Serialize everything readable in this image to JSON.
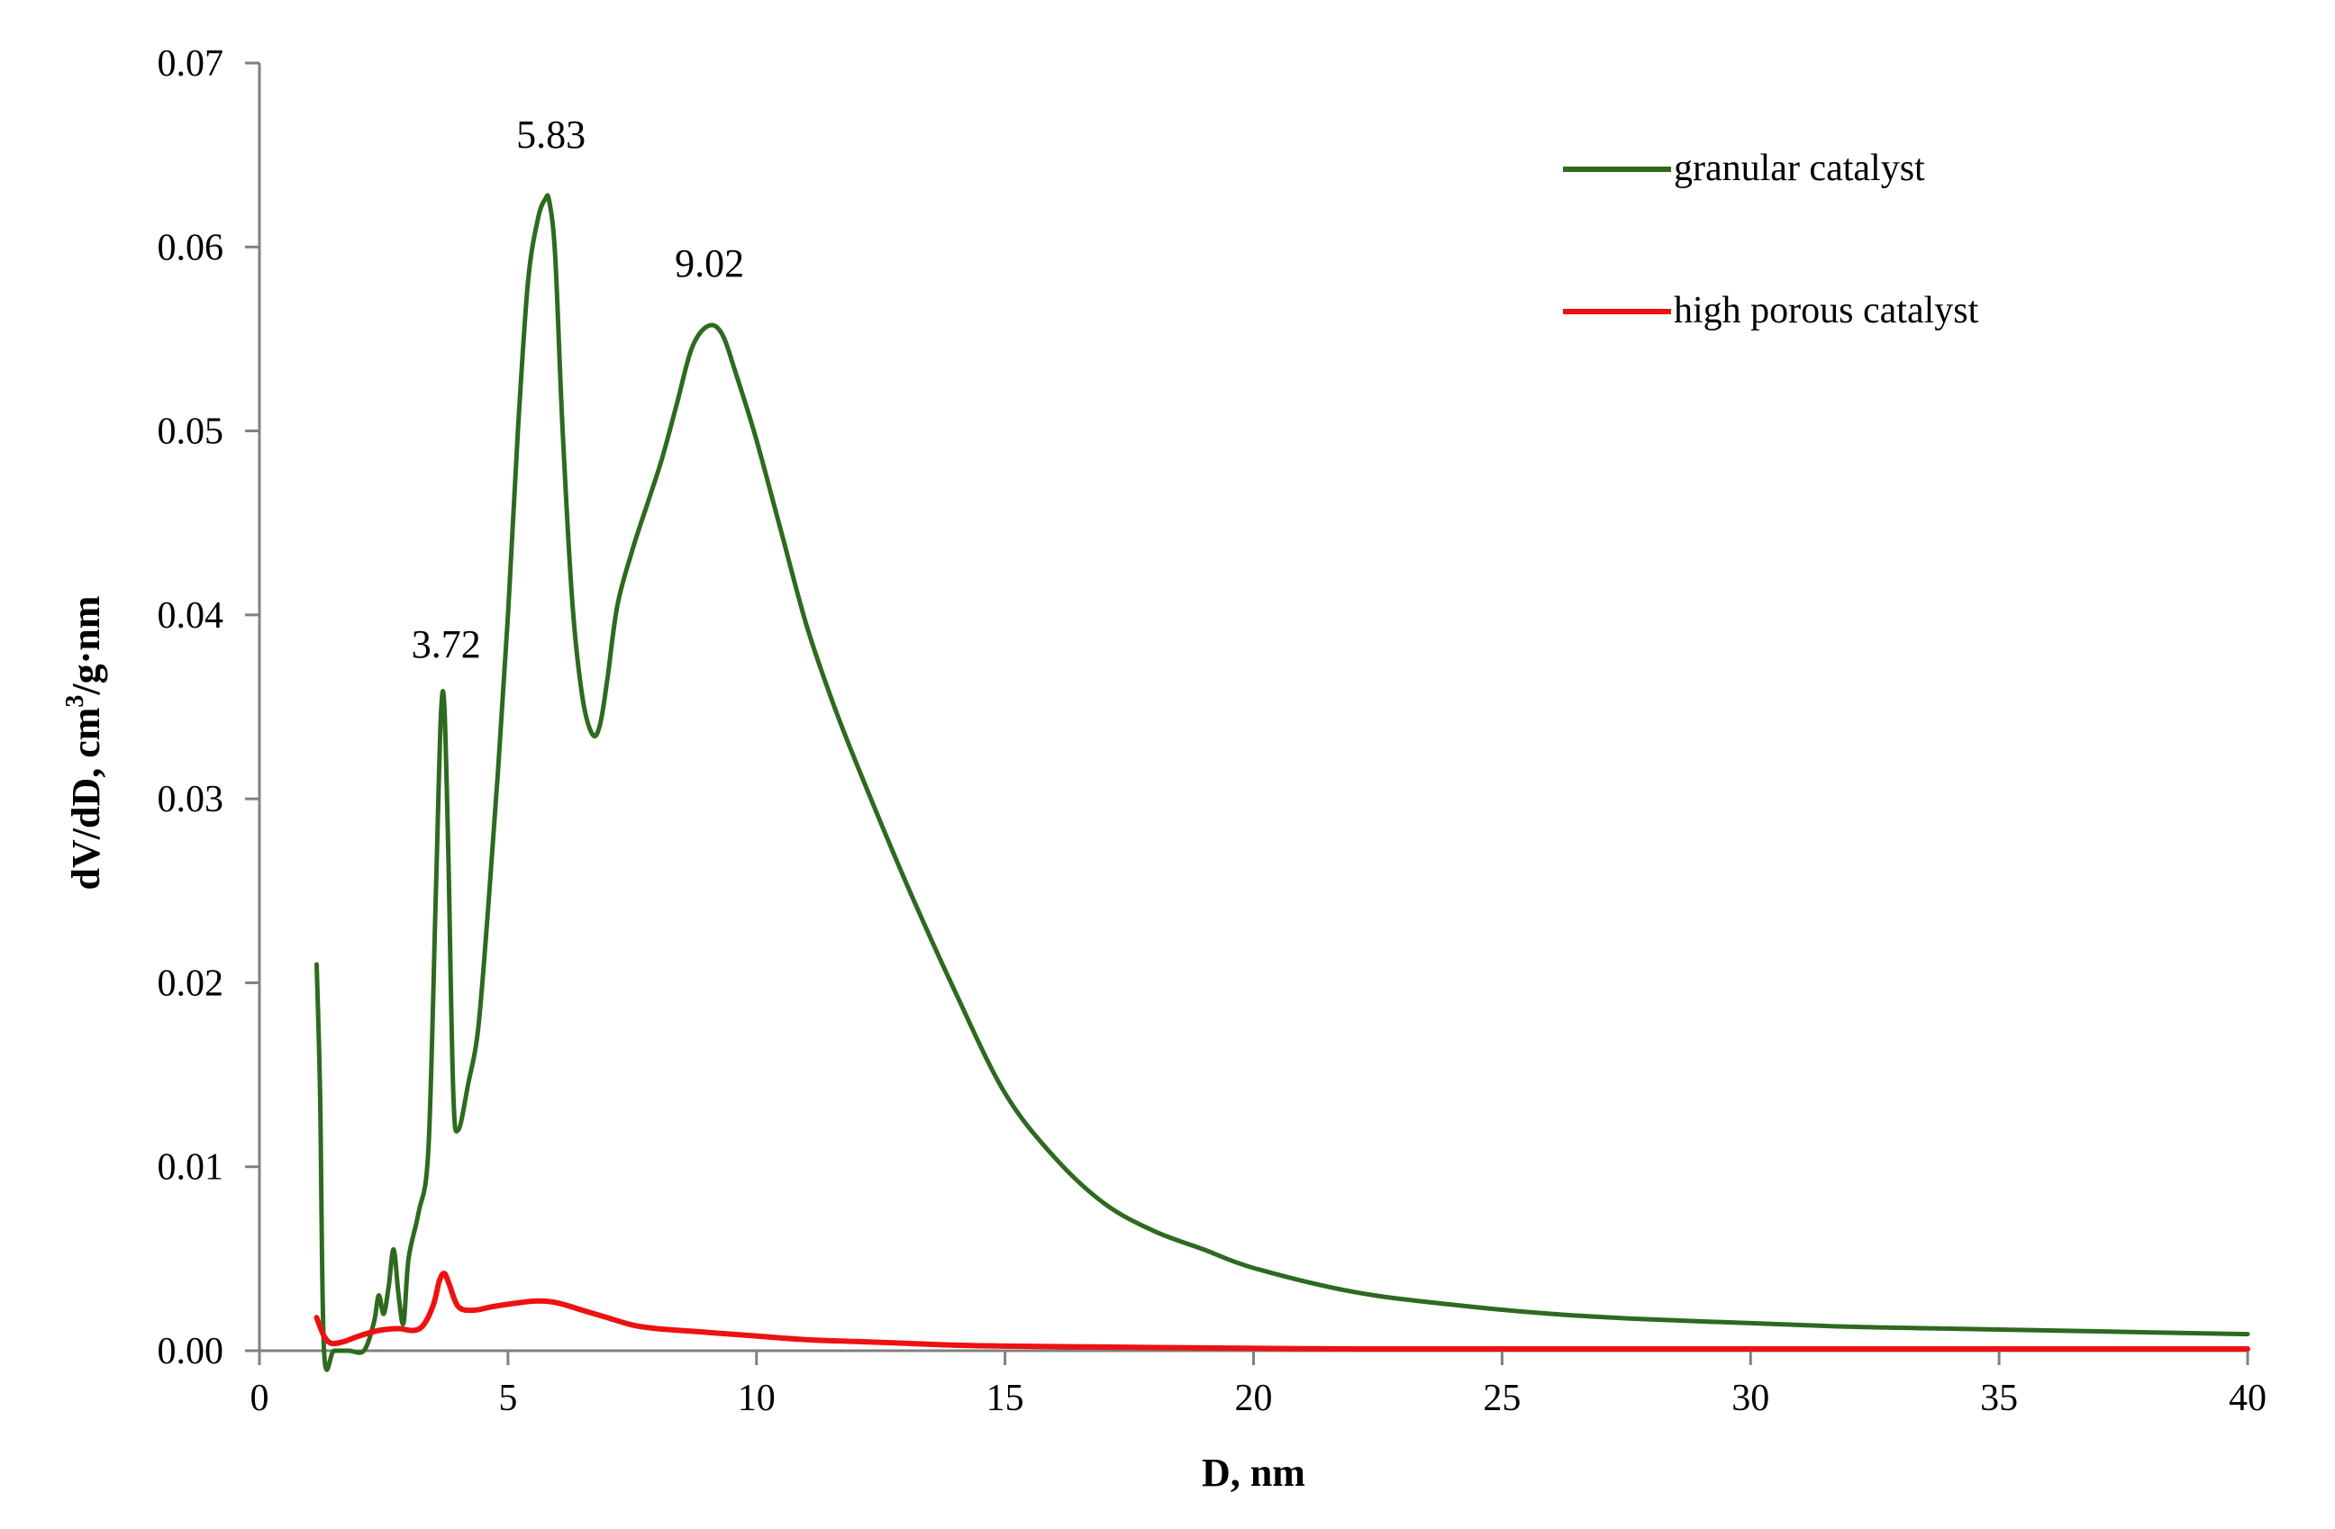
{
  "chart_data": {
    "type": "line",
    "title": "",
    "xlabel": "D, nm",
    "ylabel_main": "dV/dD,  cm",
    "ylabel_sup": "3",
    "ylabel_tail": "/g·nm",
    "xlim": [
      0,
      40
    ],
    "ylim": [
      0,
      0.07
    ],
    "x_ticks": [
      0,
      5,
      10,
      15,
      20,
      25,
      30,
      35,
      40
    ],
    "x_tick_labels": [
      "0",
      "5",
      "10",
      "15",
      "20",
      "25",
      "30",
      "35",
      "40"
    ],
    "y_ticks": [
      0,
      0.01,
      0.02,
      0.03,
      0.04,
      0.05,
      0.06,
      0.07
    ],
    "y_tick_labels": [
      "0.00",
      "0.01",
      "0.02",
      "0.03",
      "0.04",
      "0.05",
      "0.06",
      "0.07"
    ],
    "grid": false,
    "legend_position": "top-right",
    "annotations": [
      {
        "text": "3.72",
        "x": 3.72,
        "y": 0.035
      },
      {
        "text": "5.83",
        "x": 5.83,
        "y": 0.0627
      },
      {
        "text": "9.02",
        "x": 9.02,
        "y": 0.0557
      }
    ],
    "series": [
      {
        "name": "granular catalyst",
        "color": "#2d6a1f",
        "x": [
          1.15,
          1.22,
          1.3,
          1.5,
          1.8,
          2.1,
          2.3,
          2.4,
          2.5,
          2.6,
          2.7,
          2.8,
          2.9,
          3.0,
          3.2,
          3.4,
          3.55,
          3.65,
          3.72,
          3.8,
          3.9,
          4.0,
          4.2,
          4.4,
          4.6,
          4.8,
          5.0,
          5.2,
          5.4,
          5.6,
          5.75,
          5.83,
          5.95,
          6.1,
          6.3,
          6.5,
          6.7,
          6.85,
          7.0,
          7.2,
          7.5,
          7.8,
          8.1,
          8.4,
          8.7,
          9.02,
          9.3,
          9.6,
          10.0,
          10.5,
          11.0,
          11.5,
          12.0,
          13.0,
          14.0,
          15.0,
          16.0,
          17.0,
          18.0,
          19.0,
          20.0,
          22.0,
          24.0,
          26.0,
          28.0,
          30.0,
          32.0,
          34.0,
          36.0,
          38.0,
          40.0
        ],
        "y": [
          0.021,
          0.014,
          0.0,
          0.0,
          0.0,
          0.0,
          0.0015,
          0.003,
          0.002,
          0.0035,
          0.0055,
          0.003,
          0.0015,
          0.005,
          0.0075,
          0.011,
          0.025,
          0.0345,
          0.035,
          0.027,
          0.014,
          0.012,
          0.0145,
          0.0175,
          0.024,
          0.0315,
          0.04,
          0.05,
          0.058,
          0.0615,
          0.0626,
          0.0625,
          0.0595,
          0.05,
          0.0405,
          0.0355,
          0.0335,
          0.034,
          0.0365,
          0.0405,
          0.0435,
          0.046,
          0.0485,
          0.0515,
          0.0545,
          0.0557,
          0.0553,
          0.053,
          0.0495,
          0.0445,
          0.0395,
          0.0355,
          0.032,
          0.0255,
          0.0195,
          0.014,
          0.0105,
          0.008,
          0.0065,
          0.0055,
          0.0045,
          0.0032,
          0.0025,
          0.002,
          0.0017,
          0.0015,
          0.0013,
          0.0012,
          0.0011,
          0.001,
          0.0009
        ]
      },
      {
        "name": "high porous catalyst",
        "color": "#ee1111",
        "x": [
          1.15,
          1.3,
          1.45,
          1.7,
          2.0,
          2.4,
          2.8,
          3.1,
          3.3,
          3.5,
          3.62,
          3.72,
          3.82,
          4.0,
          4.3,
          4.7,
          5.2,
          5.6,
          6.0,
          6.5,
          7.0,
          7.5,
          8.0,
          9.0,
          10.0,
          11.0,
          12.0,
          13.0,
          14.0,
          15.0,
          17.0,
          19.0,
          22.0,
          25.0,
          30.0,
          35.0,
          40.0
        ],
        "y": [
          0.0018,
          0.0008,
          0.0004,
          0.0005,
          0.0008,
          0.0011,
          0.0012,
          0.0011,
          0.0014,
          0.0025,
          0.0038,
          0.0042,
          0.0036,
          0.0024,
          0.0022,
          0.0024,
          0.0026,
          0.0027,
          0.0026,
          0.0022,
          0.0018,
          0.0014,
          0.0012,
          0.001,
          0.0008,
          0.0006,
          0.0005,
          0.0004,
          0.0003,
          0.00025,
          0.0002,
          0.00015,
          0.0001,
          0.0001,
          0.0001,
          0.0001,
          0.0001
        ]
      }
    ]
  }
}
